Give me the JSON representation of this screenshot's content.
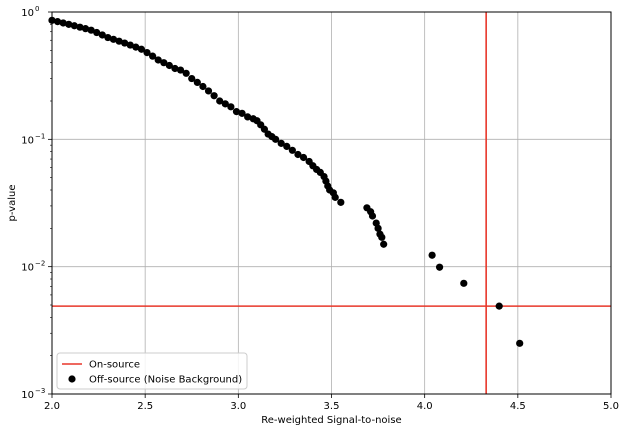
{
  "chart_data": {
    "type": "scatter",
    "xlabel": "Re-weighted Signal-to-noise",
    "ylabel": "p-value",
    "xlim": [
      2.0,
      5.0
    ],
    "ylim": [
      0.001,
      1.0
    ],
    "yscale": "log",
    "grid": true,
    "legend_position": "lower-left",
    "x_ticks": [
      {
        "value": 2.0,
        "label": "2.0"
      },
      {
        "value": 2.5,
        "label": "2.5"
      },
      {
        "value": 3.0,
        "label": "3.0"
      },
      {
        "value": 3.5,
        "label": "3.5"
      },
      {
        "value": 4.0,
        "label": "4.0"
      },
      {
        "value": 4.5,
        "label": "4.5"
      },
      {
        "value": 5.0,
        "label": "5.0"
      }
    ],
    "y_ticks": [
      {
        "value": 1.0,
        "base": "10",
        "exp": "0"
      },
      {
        "value": 0.1,
        "base": "10",
        "exp": "−1"
      },
      {
        "value": 0.01,
        "base": "10",
        "exp": "−2"
      },
      {
        "value": 0.001,
        "base": "10",
        "exp": "−3"
      }
    ],
    "series": [
      {
        "name": "On-source",
        "kind": "lines",
        "color": "#e8372a",
        "vertical_x": 4.33,
        "horizontal_y": 0.0049
      },
      {
        "name": "Off-source (Noise Background)",
        "kind": "scatter",
        "color": "#000000",
        "points": [
          [
            2.0,
            0.86
          ],
          [
            2.03,
            0.84
          ],
          [
            2.06,
            0.82
          ],
          [
            2.09,
            0.8
          ],
          [
            2.12,
            0.78
          ],
          [
            2.15,
            0.76
          ],
          [
            2.18,
            0.74
          ],
          [
            2.21,
            0.72
          ],
          [
            2.24,
            0.69
          ],
          [
            2.27,
            0.66
          ],
          [
            2.3,
            0.63
          ],
          [
            2.33,
            0.61
          ],
          [
            2.36,
            0.59
          ],
          [
            2.39,
            0.57
          ],
          [
            2.42,
            0.55
          ],
          [
            2.45,
            0.53
          ],
          [
            2.48,
            0.51
          ],
          [
            2.51,
            0.48
          ],
          [
            2.54,
            0.45
          ],
          [
            2.57,
            0.42
          ],
          [
            2.6,
            0.4
          ],
          [
            2.63,
            0.38
          ],
          [
            2.66,
            0.36
          ],
          [
            2.69,
            0.35
          ],
          [
            2.72,
            0.33
          ],
          [
            2.75,
            0.3
          ],
          [
            2.78,
            0.28
          ],
          [
            2.81,
            0.26
          ],
          [
            2.84,
            0.24
          ],
          [
            2.87,
            0.22
          ],
          [
            2.9,
            0.2
          ],
          [
            2.93,
            0.19
          ],
          [
            2.96,
            0.18
          ],
          [
            2.99,
            0.165
          ],
          [
            3.02,
            0.16
          ],
          [
            3.05,
            0.15
          ],
          [
            3.08,
            0.145
          ],
          [
            3.1,
            0.14
          ],
          [
            3.12,
            0.13
          ],
          [
            3.14,
            0.12
          ],
          [
            3.16,
            0.11
          ],
          [
            3.18,
            0.105
          ],
          [
            3.2,
            0.1
          ],
          [
            3.23,
            0.093
          ],
          [
            3.26,
            0.088
          ],
          [
            3.29,
            0.082
          ],
          [
            3.32,
            0.076
          ],
          [
            3.35,
            0.072
          ],
          [
            3.38,
            0.067
          ],
          [
            3.4,
            0.062
          ],
          [
            3.42,
            0.058
          ],
          [
            3.44,
            0.055
          ],
          [
            3.46,
            0.051
          ],
          [
            3.47,
            0.047
          ],
          [
            3.48,
            0.043
          ],
          [
            3.49,
            0.04
          ],
          [
            3.51,
            0.038
          ],
          [
            3.52,
            0.035
          ],
          [
            3.55,
            0.032
          ],
          [
            3.69,
            0.029
          ],
          [
            3.71,
            0.027
          ],
          [
            3.72,
            0.025
          ],
          [
            3.74,
            0.022
          ],
          [
            3.75,
            0.02
          ],
          [
            3.76,
            0.018
          ],
          [
            3.77,
            0.017
          ],
          [
            3.78,
            0.015
          ],
          [
            4.04,
            0.0123
          ],
          [
            4.08,
            0.0099
          ],
          [
            4.21,
            0.0074
          ],
          [
            4.4,
            0.0049
          ],
          [
            4.51,
            0.0025
          ]
        ]
      }
    ]
  }
}
